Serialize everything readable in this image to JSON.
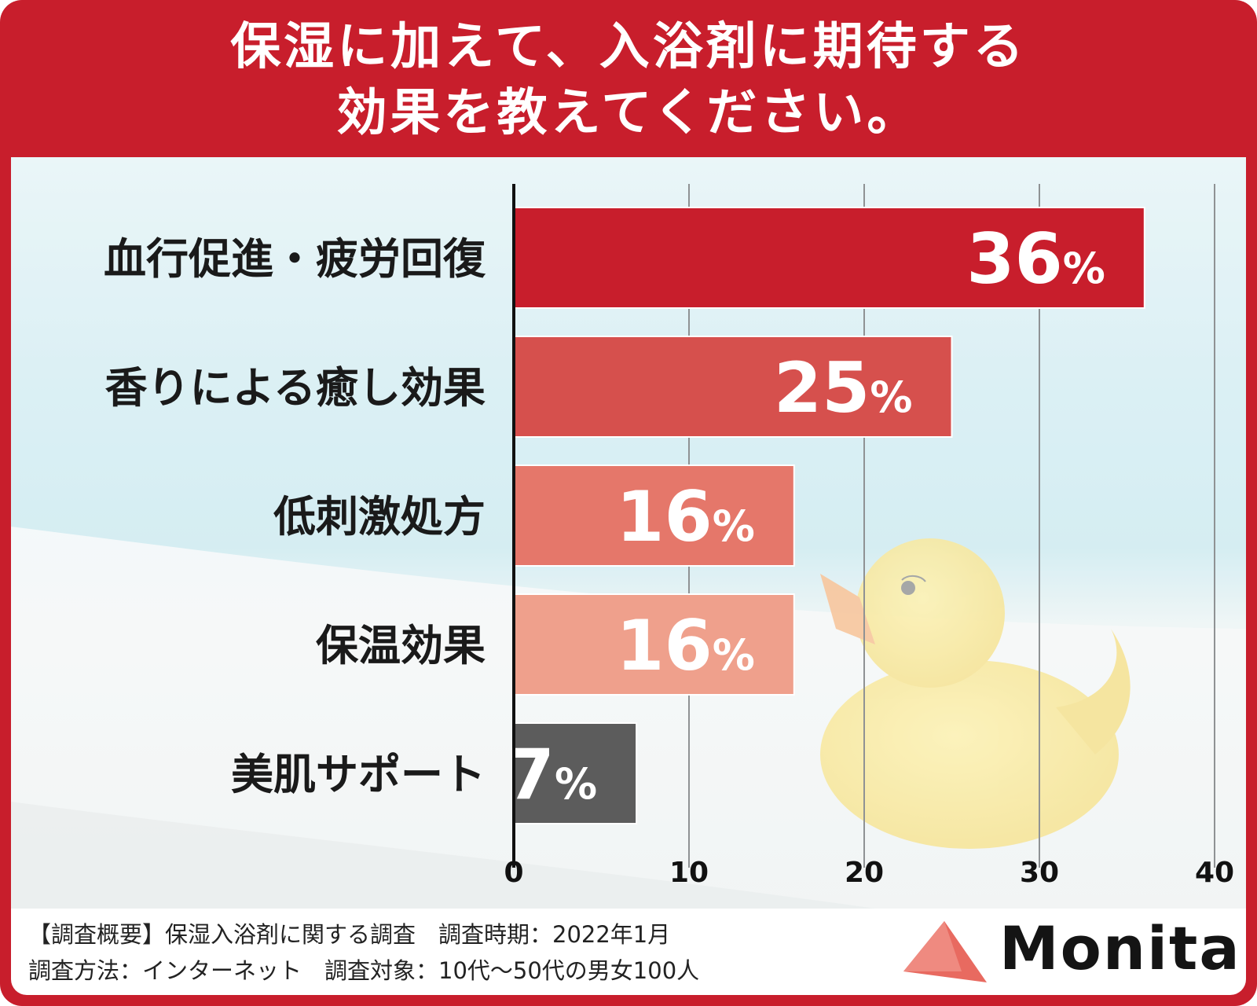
{
  "title_line1": "保湿に加えて、入浴剤に期待する",
  "title_line2": "効果を教えてください。",
  "chart_data": {
    "type": "bar",
    "orientation": "horizontal",
    "categories": [
      "血行促進・疲労回復",
      "香りによる癒し効果",
      "低刺激処方",
      "保温効果",
      "美肌サポート"
    ],
    "values": [
      36,
      25,
      16,
      16,
      7
    ],
    "value_labels": [
      "36",
      "25",
      "16",
      "16",
      "7"
    ],
    "value_suffix": "%",
    "bar_colors": [
      "#c81e2c",
      "#d6504d",
      "#e5776a",
      "#efa08c",
      "#5c5c5c"
    ],
    "x_ticks": [
      "0",
      "10",
      "20",
      "30",
      "40"
    ],
    "xlim": [
      0,
      40
    ],
    "grid": true
  },
  "footer": {
    "line1": "【調査概要】保湿入浴剤に関する調査　調査時期：2022年1月",
    "line2": "調査方法：インターネット　調査対象：10代〜50代の男女100人"
  },
  "logo": {
    "text": "Monita",
    "mark_color": "#e86a60"
  },
  "colors": {
    "frame": "#c81e2c",
    "title_text": "#ffffff"
  }
}
